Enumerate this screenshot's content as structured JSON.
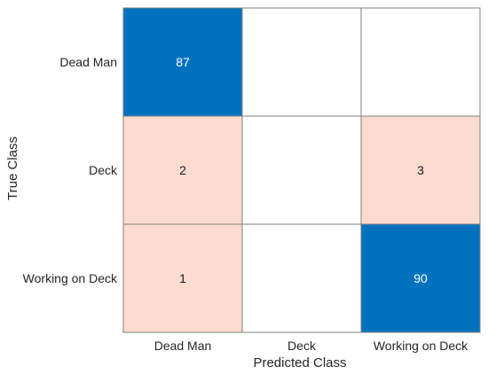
{
  "chart_data": {
    "type": "heatmap",
    "title": "",
    "xlabel": "Predicted Class",
    "ylabel": "True Class",
    "x_categories": [
      "Dead Man",
      "Deck",
      "Working on Deck"
    ],
    "y_categories": [
      "Dead Man",
      "Deck",
      "Working on Deck"
    ],
    "values": [
      [
        87,
        null,
        null
      ],
      [
        2,
        null,
        3
      ],
      [
        1,
        null,
        90
      ]
    ],
    "colors": {
      "diagonal": "#0072bd",
      "off_diagonal": "#fcdcd0",
      "empty": "#ffffff",
      "grid": "#7f7f7f",
      "diagonal_text": "#ffffff",
      "off_diagonal_text": "#1a1a1a"
    }
  }
}
